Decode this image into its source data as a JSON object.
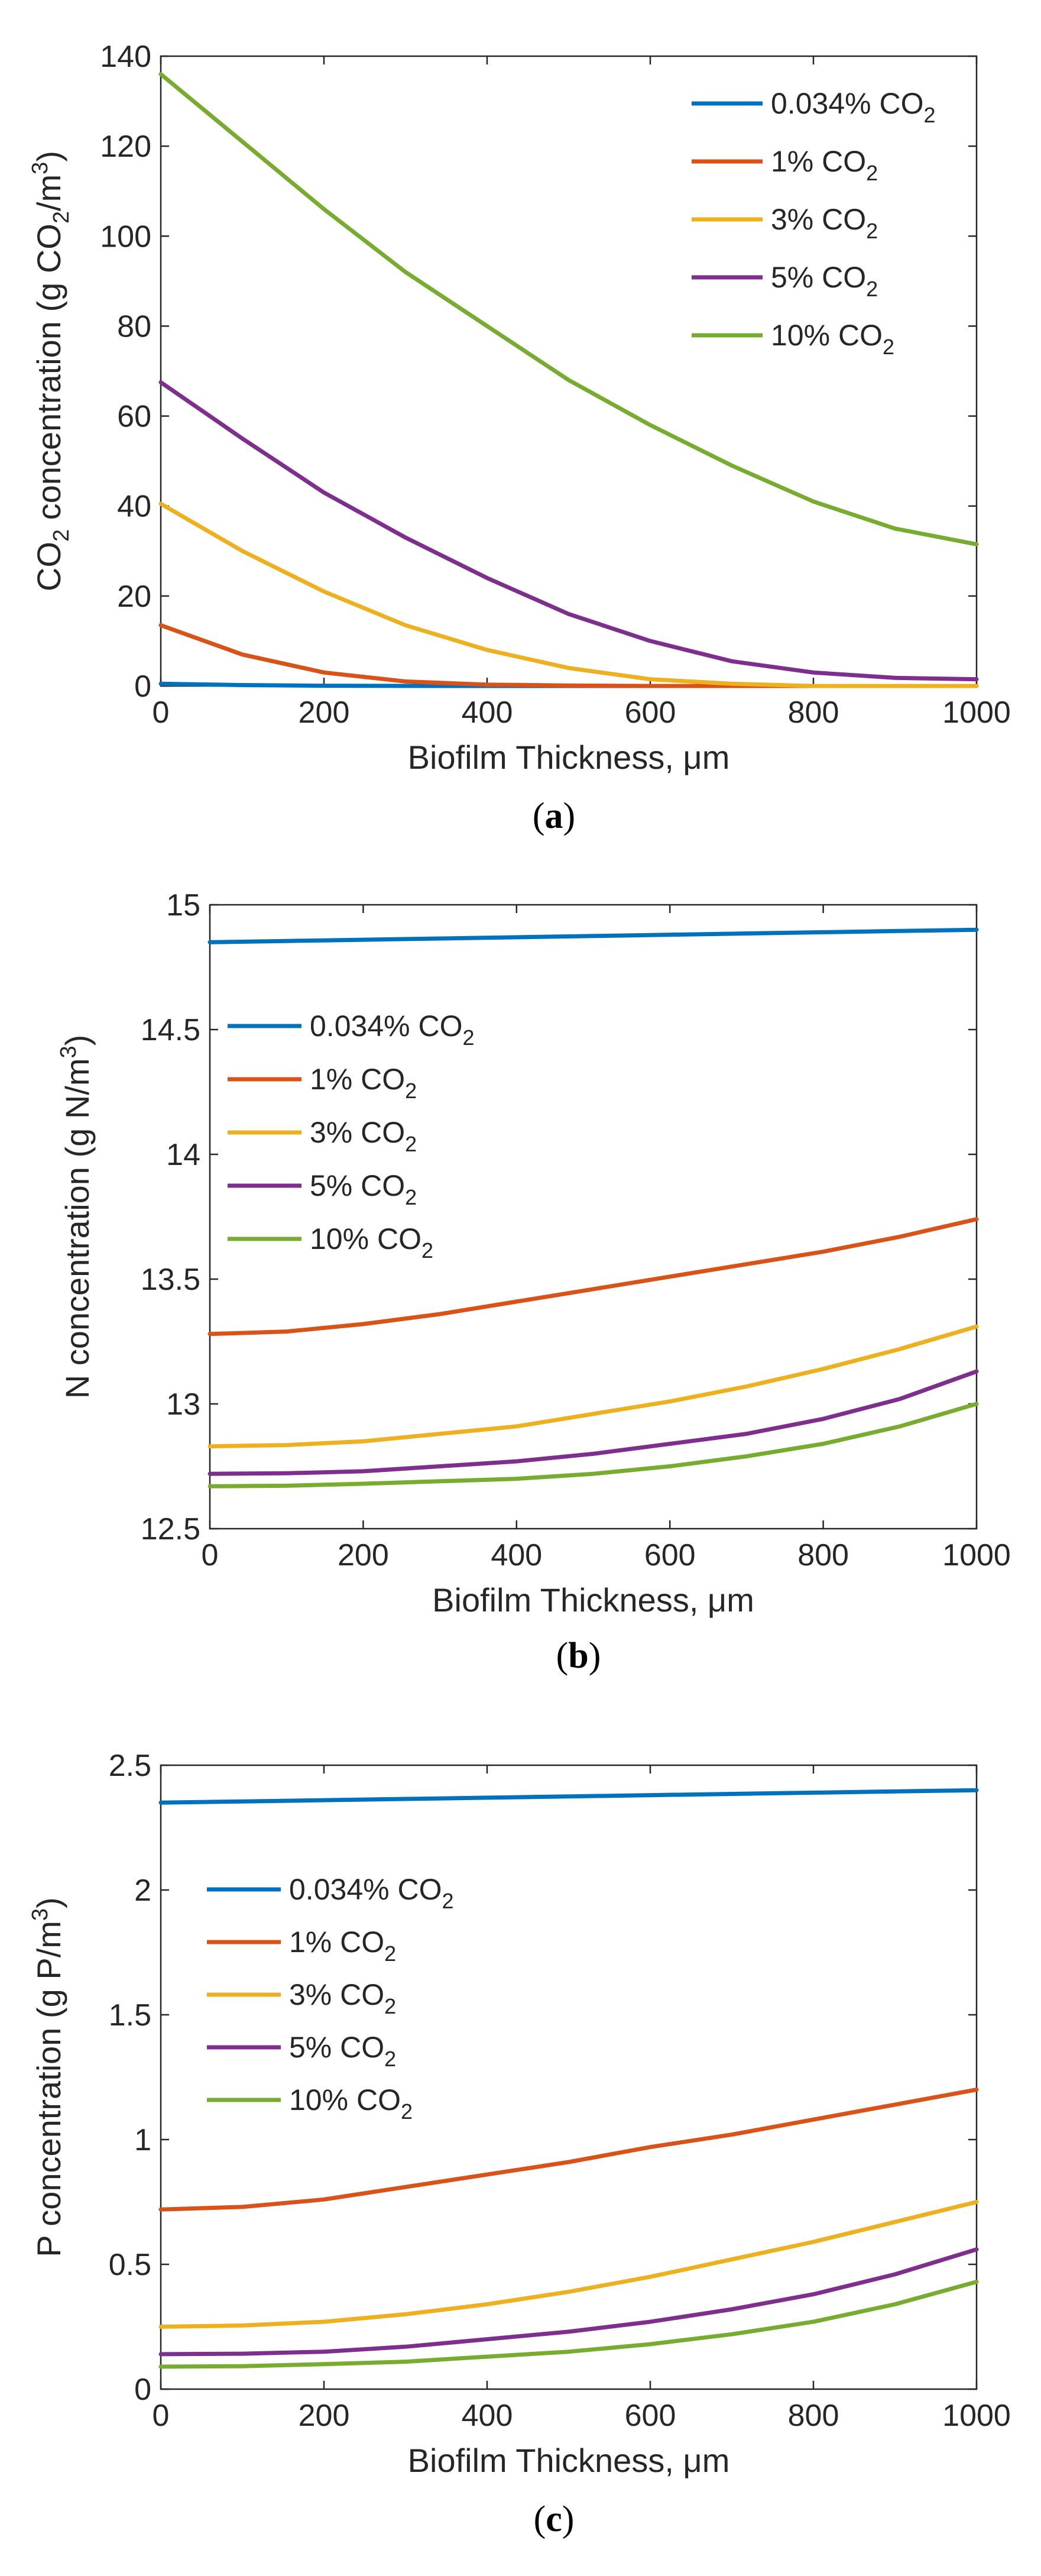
{
  "chart_data": [
    {
      "type": "line",
      "caption": "(a)",
      "caption_letter": "a",
      "xlabel": "Biofilm Thickness, μm",
      "ylabel": "CO2 concentration (g CO2/m3)",
      "ylabel_parts": {
        "a": "CO",
        "b": "2",
        "c": " concentration (g CO",
        "d": "2",
        "e": "/m",
        "f": "3",
        "g": ")"
      },
      "xlim": [
        0,
        1000
      ],
      "ylim": [
        0,
        140
      ],
      "xticks": [
        0,
        200,
        400,
        600,
        800,
        1000
      ],
      "yticks": [
        0,
        20,
        40,
        60,
        80,
        100,
        120,
        140
      ],
      "legend_position": "top-right",
      "series": [
        {
          "name": "0.034% CO2",
          "label": "0.034% CO",
          "sub": "2",
          "color": "#0072BD",
          "x": [
            0,
            100,
            200,
            300,
            400,
            500,
            600,
            700,
            800,
            900,
            1000
          ],
          "values": [
            0.5,
            0.2,
            0.05,
            0.01,
            0,
            0,
            0,
            0,
            0,
            0,
            0
          ]
        },
        {
          "name": "1% CO2",
          "label": "1% CO",
          "sub": "2",
          "color": "#D95319",
          "x": [
            0,
            100,
            200,
            300,
            400,
            500,
            600,
            700,
            800,
            900,
            1000
          ],
          "values": [
            13.5,
            7,
            3,
            1,
            0.3,
            0.1,
            0,
            0,
            0,
            0,
            0
          ]
        },
        {
          "name": "3% CO2",
          "label": "3% CO",
          "sub": "2",
          "color": "#EDB120",
          "x": [
            0,
            100,
            200,
            300,
            400,
            500,
            600,
            700,
            800,
            900,
            1000
          ],
          "values": [
            40.5,
            30,
            21,
            13.5,
            8,
            4,
            1.5,
            0.5,
            0,
            0,
            0
          ]
        },
        {
          "name": "5% CO2",
          "label": "5% CO",
          "sub": "2",
          "color": "#7E2F8E",
          "x": [
            0,
            100,
            200,
            300,
            400,
            500,
            600,
            700,
            800,
            900,
            1000
          ],
          "values": [
            67.5,
            55,
            43,
            33,
            24,
            16,
            10,
            5.5,
            3,
            1.8,
            1.5
          ]
        },
        {
          "name": "10% CO2",
          "label": "10% CO",
          "sub": "2",
          "color": "#77AC30",
          "x": [
            0,
            100,
            200,
            300,
            400,
            500,
            600,
            700,
            800,
            900,
            1000
          ],
          "values": [
            136,
            121,
            106,
            92,
            80,
            68,
            58,
            49,
            41,
            35,
            31.5
          ]
        }
      ]
    },
    {
      "type": "line",
      "caption": "(b)",
      "caption_letter": "b",
      "xlabel": "Biofilm Thickness, μm",
      "ylabel": "N concentration (g N/m3)",
      "ylabel_parts": {
        "a": "N concentration (g N/m",
        "b": "3",
        "c": ")"
      },
      "xlim": [
        0,
        1000
      ],
      "ylim": [
        12.5,
        15
      ],
      "xticks": [
        0,
        200,
        400,
        600,
        800,
        1000
      ],
      "yticks": [
        12.5,
        13,
        13.5,
        14,
        14.5,
        15
      ],
      "legend_position": "upper-left",
      "series": [
        {
          "name": "0.034% CO2",
          "label": "0.034% CO",
          "sub": "2",
          "color": "#0072BD",
          "x": [
            0,
            100,
            200,
            300,
            400,
            500,
            600,
            700,
            800,
            900,
            1000
          ],
          "values": [
            14.85,
            14.855,
            14.86,
            14.865,
            14.87,
            14.875,
            14.88,
            14.885,
            14.89,
            14.895,
            14.9
          ]
        },
        {
          "name": "1% CO2",
          "label": "1% CO",
          "sub": "2",
          "color": "#D95319",
          "x": [
            0,
            100,
            200,
            300,
            400,
            500,
            600,
            700,
            800,
            900,
            1000
          ],
          "values": [
            13.28,
            13.29,
            13.32,
            13.36,
            13.41,
            13.46,
            13.51,
            13.56,
            13.61,
            13.67,
            13.74
          ]
        },
        {
          "name": "3% CO2",
          "label": "3% CO",
          "sub": "2",
          "color": "#EDB120",
          "x": [
            0,
            100,
            200,
            300,
            400,
            500,
            600,
            700,
            800,
            900,
            1000
          ],
          "values": [
            12.83,
            12.835,
            12.85,
            12.88,
            12.91,
            12.96,
            13.01,
            13.07,
            13.14,
            13.22,
            13.31
          ]
        },
        {
          "name": "5% CO2",
          "label": "5% CO",
          "sub": "2",
          "color": "#7E2F8E",
          "x": [
            0,
            100,
            200,
            300,
            400,
            500,
            600,
            700,
            800,
            900,
            1000
          ],
          "values": [
            12.72,
            12.722,
            12.73,
            12.75,
            12.77,
            12.8,
            12.84,
            12.88,
            12.94,
            13.02,
            13.13
          ]
        },
        {
          "name": "10% CO2",
          "label": "10% CO",
          "sub": "2",
          "color": "#77AC30",
          "x": [
            0,
            100,
            200,
            300,
            400,
            500,
            600,
            700,
            800,
            900,
            1000
          ],
          "values": [
            12.67,
            12.672,
            12.68,
            12.69,
            12.7,
            12.72,
            12.75,
            12.79,
            12.84,
            12.91,
            13.0
          ]
        }
      ]
    },
    {
      "type": "line",
      "caption": "(c)",
      "caption_letter": "c",
      "xlabel": "Biofilm Thickness, μm",
      "ylabel": "P concentration (g P/m3)",
      "ylabel_parts": {
        "a": "P concentration (g P/m",
        "b": "3",
        "c": ")"
      },
      "xlim": [
        0,
        1000
      ],
      "ylim": [
        0,
        2.5
      ],
      "xticks": [
        0,
        200,
        400,
        600,
        800,
        1000
      ],
      "yticks": [
        0,
        0.5,
        1,
        1.5,
        2,
        2.5
      ],
      "legend_position": "upper-left",
      "series": [
        {
          "name": "0.034% CO2",
          "label": "0.034% CO",
          "sub": "2",
          "color": "#0072BD",
          "x": [
            0,
            100,
            200,
            300,
            400,
            500,
            600,
            700,
            800,
            900,
            1000
          ],
          "values": [
            2.35,
            2.355,
            2.36,
            2.365,
            2.37,
            2.375,
            2.38,
            2.385,
            2.39,
            2.395,
            2.4
          ]
        },
        {
          "name": "1% CO2",
          "label": "1% CO",
          "sub": "2",
          "color": "#D95319",
          "x": [
            0,
            100,
            200,
            300,
            400,
            500,
            600,
            700,
            800,
            900,
            1000
          ],
          "values": [
            0.72,
            0.73,
            0.76,
            0.81,
            0.86,
            0.91,
            0.97,
            1.02,
            1.08,
            1.14,
            1.2
          ]
        },
        {
          "name": "3% CO2",
          "label": "3% CO",
          "sub": "2",
          "color": "#EDB120",
          "x": [
            0,
            100,
            200,
            300,
            400,
            500,
            600,
            700,
            800,
            900,
            1000
          ],
          "values": [
            0.25,
            0.255,
            0.27,
            0.3,
            0.34,
            0.39,
            0.45,
            0.52,
            0.59,
            0.67,
            0.75
          ]
        },
        {
          "name": "5% CO2",
          "label": "5% CO",
          "sub": "2",
          "color": "#7E2F8E",
          "x": [
            0,
            100,
            200,
            300,
            400,
            500,
            600,
            700,
            800,
            900,
            1000
          ],
          "values": [
            0.14,
            0.142,
            0.15,
            0.17,
            0.2,
            0.23,
            0.27,
            0.32,
            0.38,
            0.46,
            0.56
          ]
        },
        {
          "name": "10% CO2",
          "label": "10% CO",
          "sub": "2",
          "color": "#77AC30",
          "x": [
            0,
            100,
            200,
            300,
            400,
            500,
            600,
            700,
            800,
            900,
            1000
          ],
          "values": [
            0.09,
            0.092,
            0.1,
            0.11,
            0.13,
            0.15,
            0.18,
            0.22,
            0.27,
            0.34,
            0.43
          ]
        }
      ]
    }
  ]
}
